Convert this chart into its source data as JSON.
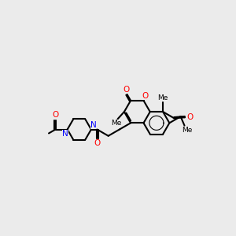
{
  "bg_color": "#ebebeb",
  "atom_colors": {
    "O": "#ff0000",
    "N": "#0000ff",
    "C": "#000000"
  },
  "bond_color": "#000000",
  "bond_width": 1.5,
  "font_size_atoms": 7.5,
  "font_size_methyl": 6.5,
  "xlim": [
    0.0,
    9.5
  ],
  "ylim": [
    1.2,
    6.2
  ]
}
